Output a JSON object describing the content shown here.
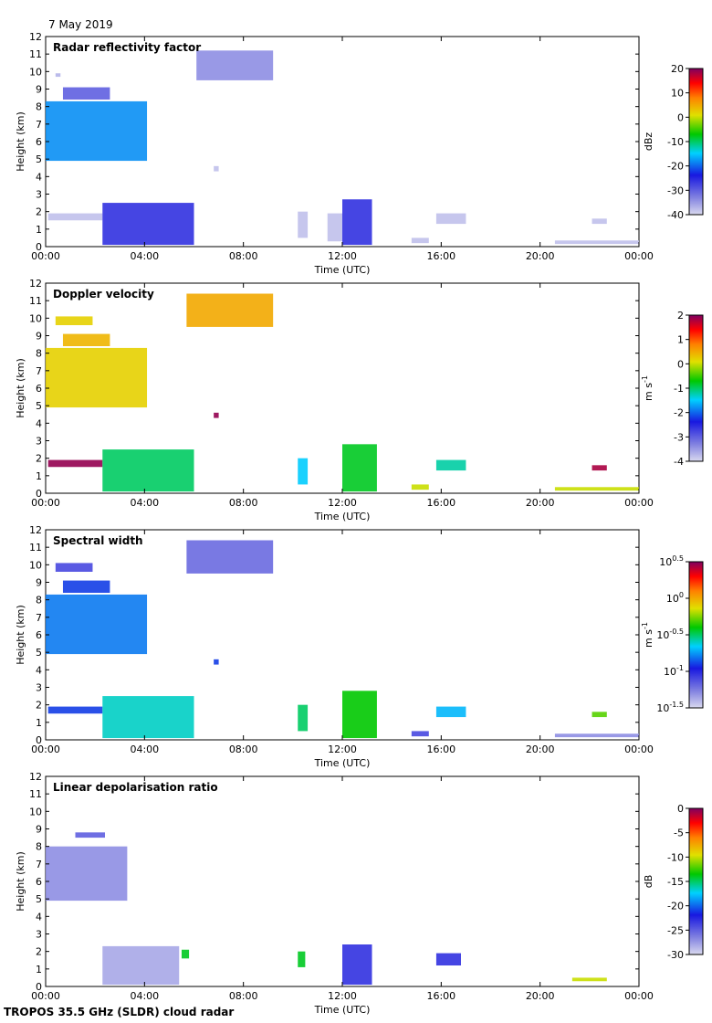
{
  "date_label": "7 May 2019",
  "footer": "TROPOS 35.5 GHz (SLDR) cloud radar",
  "time_axis": {
    "label": "Time (UTC)",
    "ticks": [
      "00:00",
      "04:00",
      "08:00",
      "12:00",
      "16:00",
      "20:00",
      "00:00"
    ],
    "range_hours": [
      0,
      24
    ]
  },
  "height_axis": {
    "label": "Height (km)",
    "range_km": [
      0,
      12
    ],
    "ticks": [
      "0",
      "1",
      "2",
      "3",
      "4",
      "5",
      "6",
      "7",
      "8",
      "9",
      "10",
      "11",
      "12"
    ]
  },
  "chart_data": [
    {
      "type": "heatmap",
      "title": "Radar reflectivity factor",
      "xlabel": "Time (UTC)",
      "ylabel": "Height (km)",
      "colorbar": {
        "unit_label": "dBz",
        "range": [
          -40,
          20
        ],
        "ticks": [
          "20",
          "10",
          "0",
          "-10",
          "-20",
          "-30",
          "-40"
        ]
      },
      "regions": [
        {
          "t0": 0.0,
          "t1": 4.1,
          "h0": 4.9,
          "h1": 8.3,
          "value": -18
        },
        {
          "t0": 0.7,
          "t1": 2.6,
          "h0": 8.4,
          "h1": 9.1,
          "value": -30
        },
        {
          "t0": 0.4,
          "t1": 0.6,
          "h0": 9.7,
          "h1": 9.9,
          "value": -37
        },
        {
          "t0": 6.1,
          "t1": 9.2,
          "h0": 9.5,
          "h1": 11.2,
          "value": -34
        },
        {
          "t0": 6.8,
          "t1": 7.0,
          "h0": 4.3,
          "h1": 4.6,
          "value": -38
        },
        {
          "t0": 0.1,
          "t1": 2.3,
          "h0": 1.5,
          "h1": 1.9,
          "value": -38
        },
        {
          "t0": 2.3,
          "t1": 6.0,
          "h0": 0.1,
          "h1": 2.5,
          "value": -26
        },
        {
          "t0": 10.2,
          "t1": 10.6,
          "h0": 0.5,
          "h1": 2.0,
          "value": -38
        },
        {
          "t0": 11.4,
          "t1": 12.0,
          "h0": 0.3,
          "h1": 1.9,
          "value": -38
        },
        {
          "t0": 12.0,
          "t1": 13.2,
          "h0": 0.1,
          "h1": 2.7,
          "value": -26
        },
        {
          "t0": 14.8,
          "t1": 15.5,
          "h0": 0.2,
          "h1": 0.5,
          "value": -38
        },
        {
          "t0": 15.8,
          "t1": 17.0,
          "h0": 1.3,
          "h1": 1.9,
          "value": -38
        },
        {
          "t0": 22.1,
          "t1": 22.7,
          "h0": 1.3,
          "h1": 1.6,
          "value": -38
        },
        {
          "t0": 20.6,
          "t1": 24.0,
          "h0": 0.15,
          "h1": 0.35,
          "value": -38
        }
      ]
    },
    {
      "type": "heatmap",
      "title": "Doppler velocity",
      "xlabel": "Time (UTC)",
      "ylabel": "Height (km)",
      "colorbar": {
        "unit_label": "m s",
        "unit_sup": "-1",
        "range": [
          -4,
          2
        ],
        "ticks": [
          "2",
          "1",
          "0",
          "-1",
          "-2",
          "-3",
          "-4"
        ]
      },
      "regions": [
        {
          "t0": 0.0,
          "t1": 4.1,
          "h0": 4.9,
          "h1": 8.3,
          "value": 0.2
        },
        {
          "t0": 0.7,
          "t1": 2.6,
          "h0": 8.4,
          "h1": 9.1,
          "value": 0.4
        },
        {
          "t0": 0.4,
          "t1": 1.9,
          "h0": 9.6,
          "h1": 10.1,
          "value": 0.2
        },
        {
          "t0": 5.7,
          "t1": 9.2,
          "h0": 9.5,
          "h1": 11.4,
          "value": 0.5
        },
        {
          "t0": 6.8,
          "t1": 7.0,
          "h0": 4.3,
          "h1": 4.6,
          "value": 1.9
        },
        {
          "t0": 0.1,
          "t1": 2.3,
          "h0": 1.5,
          "h1": 1.9,
          "value": 1.9
        },
        {
          "t0": 2.3,
          "t1": 6.0,
          "h0": 0.1,
          "h1": 2.5,
          "value": -1.0
        },
        {
          "t0": 10.2,
          "t1": 10.6,
          "h0": 0.5,
          "h1": 2.0,
          "value": -1.5
        },
        {
          "t0": 12.0,
          "t1": 13.4,
          "h0": 0.1,
          "h1": 2.8,
          "value": -0.8
        },
        {
          "t0": 14.8,
          "t1": 15.5,
          "h0": 0.2,
          "h1": 0.5,
          "value": 0.0
        },
        {
          "t0": 15.8,
          "t1": 17.0,
          "h0": 1.3,
          "h1": 1.9,
          "value": -1.2
        },
        {
          "t0": 22.1,
          "t1": 22.7,
          "h0": 1.3,
          "h1": 1.6,
          "value": 1.8
        },
        {
          "t0": 20.6,
          "t1": 24.0,
          "h0": 0.15,
          "h1": 0.35,
          "value": 0.0
        }
      ]
    },
    {
      "type": "heatmap",
      "title": "Spectral width",
      "xlabel": "Time (UTC)",
      "ylabel": "Height (km)",
      "colorbar": {
        "unit_label": "m s",
        "unit_sup": "-1",
        "range": [
          -1.5,
          0.5
        ],
        "ticks": [
          "10^0.5",
          "10^0",
          "10^-0.5",
          "10^-1",
          "10^-1.5"
        ]
      },
      "regions": [
        {
          "t0": 0.0,
          "t1": 4.1,
          "h0": 4.9,
          "h1": 8.3,
          "value": -0.8
        },
        {
          "t0": 0.7,
          "t1": 2.6,
          "h0": 8.4,
          "h1": 9.1,
          "value": -0.9
        },
        {
          "t0": 0.4,
          "t1": 1.9,
          "h0": 9.6,
          "h1": 10.1,
          "value": -1.1
        },
        {
          "t0": 5.7,
          "t1": 9.2,
          "h0": 9.5,
          "h1": 11.4,
          "value": -1.2
        },
        {
          "t0": 6.8,
          "t1": 7.0,
          "h0": 4.3,
          "h1": 4.6,
          "value": -0.9
        },
        {
          "t0": 0.1,
          "t1": 2.3,
          "h0": 1.5,
          "h1": 1.9,
          "value": -0.9
        },
        {
          "t0": 2.3,
          "t1": 6.0,
          "h0": 0.1,
          "h1": 2.5,
          "value": -0.6
        },
        {
          "t0": 10.2,
          "t1": 10.6,
          "h0": 0.5,
          "h1": 2.0,
          "value": -0.5
        },
        {
          "t0": 12.0,
          "t1": 13.4,
          "h0": 0.1,
          "h1": 2.8,
          "value": -0.4
        },
        {
          "t0": 14.8,
          "t1": 15.5,
          "h0": 0.2,
          "h1": 0.5,
          "value": -1.1
        },
        {
          "t0": 15.8,
          "t1": 17.0,
          "h0": 1.3,
          "h1": 1.9,
          "value": -0.7
        },
        {
          "t0": 22.1,
          "t1": 22.7,
          "h0": 1.3,
          "h1": 1.6,
          "value": -0.3
        },
        {
          "t0": 20.6,
          "t1": 24.0,
          "h0": 0.15,
          "h1": 0.35,
          "value": -1.3
        }
      ]
    },
    {
      "type": "heatmap",
      "title": "Linear depolarisation ratio",
      "xlabel": "Time (UTC)",
      "ylabel": "Height (km)",
      "colorbar": {
        "unit_label": "dB",
        "range": [
          -30,
          0
        ],
        "ticks": [
          "0",
          "-5",
          "-10",
          "-15",
          "-20",
          "-25",
          "-30"
        ]
      },
      "regions": [
        {
          "t0": 0.0,
          "t1": 3.3,
          "h0": 4.9,
          "h1": 8.0,
          "value": -27
        },
        {
          "t0": 1.2,
          "t1": 2.4,
          "h0": 8.5,
          "h1": 8.8,
          "value": -25
        },
        {
          "t0": 2.3,
          "t1": 5.4,
          "h0": 0.1,
          "h1": 2.3,
          "value": -28
        },
        {
          "t0": 5.5,
          "t1": 5.8,
          "h0": 1.6,
          "h1": 2.1,
          "value": -14
        },
        {
          "t0": 10.2,
          "t1": 10.5,
          "h0": 1.1,
          "h1": 2.0,
          "value": -14
        },
        {
          "t0": 12.0,
          "t1": 13.2,
          "h0": 0.1,
          "h1": 2.4,
          "value": -23
        },
        {
          "t0": 15.8,
          "t1": 16.8,
          "h0": 1.2,
          "h1": 1.9,
          "value": -23
        },
        {
          "t0": 21.3,
          "t1": 22.7,
          "h0": 0.3,
          "h1": 0.5,
          "value": -10
        }
      ]
    }
  ]
}
